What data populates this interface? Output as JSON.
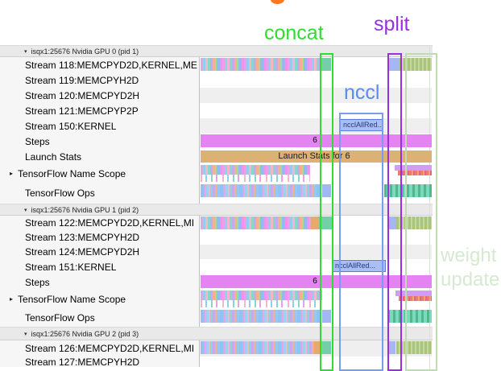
{
  "annotations": {
    "concat": {
      "label": "concat",
      "color": "#2fdd2f"
    },
    "split": {
      "label": "split",
      "color": "#9a2fe0"
    },
    "nccl": {
      "label": "nccl",
      "color": "#5b8bed"
    },
    "weight_update": {
      "line1": "weight",
      "line2": "update",
      "color": "#d5ead0"
    }
  },
  "bars": {
    "steps_value": "6",
    "launch_stats_label": "Launch Stats for 6",
    "nccl_label": "ncclAllRed...",
    "steps_color": "#e583f2",
    "launch_color": "#ddb173",
    "nccl_bar_color": "#aabdf5"
  },
  "sections": [
    {
      "header": "isqx1:25676 Nvidia GPU 0 (pid 1)",
      "rows": [
        {
          "key": "s118",
          "label": "Stream 118:MEMCPYD2D,KERNEL,ME"
        },
        {
          "key": "s119",
          "label": "Stream 119:MEMCPYH2D"
        },
        {
          "key": "s120",
          "label": "Stream 120:MEMCPYD2H"
        },
        {
          "key": "s121",
          "label": "Stream 121:MEMCPYP2P"
        },
        {
          "key": "s150",
          "label": "Stream 150:KERNEL"
        },
        {
          "key": "steps0",
          "label": "Steps"
        },
        {
          "key": "launch0",
          "label": "Launch Stats"
        },
        {
          "key": "tfns0",
          "label": "TensorFlow Name Scope",
          "expandable": true
        },
        {
          "key": "tfops0",
          "label": "TensorFlow Ops"
        }
      ]
    },
    {
      "header": "isqx1:25676 Nvidia GPU 1 (pid 2)",
      "rows": [
        {
          "key": "s122",
          "label": "Stream 122:MEMCPYD2D,KERNEL,MI"
        },
        {
          "key": "s123",
          "label": "Stream 123:MEMCPYH2D"
        },
        {
          "key": "s124",
          "label": "Stream 124:MEMCPYD2H"
        },
        {
          "key": "s151",
          "label": "Stream 151:KERNEL"
        },
        {
          "key": "steps1",
          "label": "Steps"
        },
        {
          "key": "tfns1",
          "label": "TensorFlow Name Scope",
          "expandable": true
        },
        {
          "key": "tfops1",
          "label": "TensorFlow Ops"
        }
      ]
    },
    {
      "header": "isqx1:25676 Nvidia GPU 2 (pid 3)",
      "rows": [
        {
          "key": "s126",
          "label": "Stream 126:MEMCPYD2D,KERNEL,MI"
        },
        {
          "key": "s127",
          "label": "Stream 127:MEMCPYH2D"
        }
      ]
    }
  ]
}
